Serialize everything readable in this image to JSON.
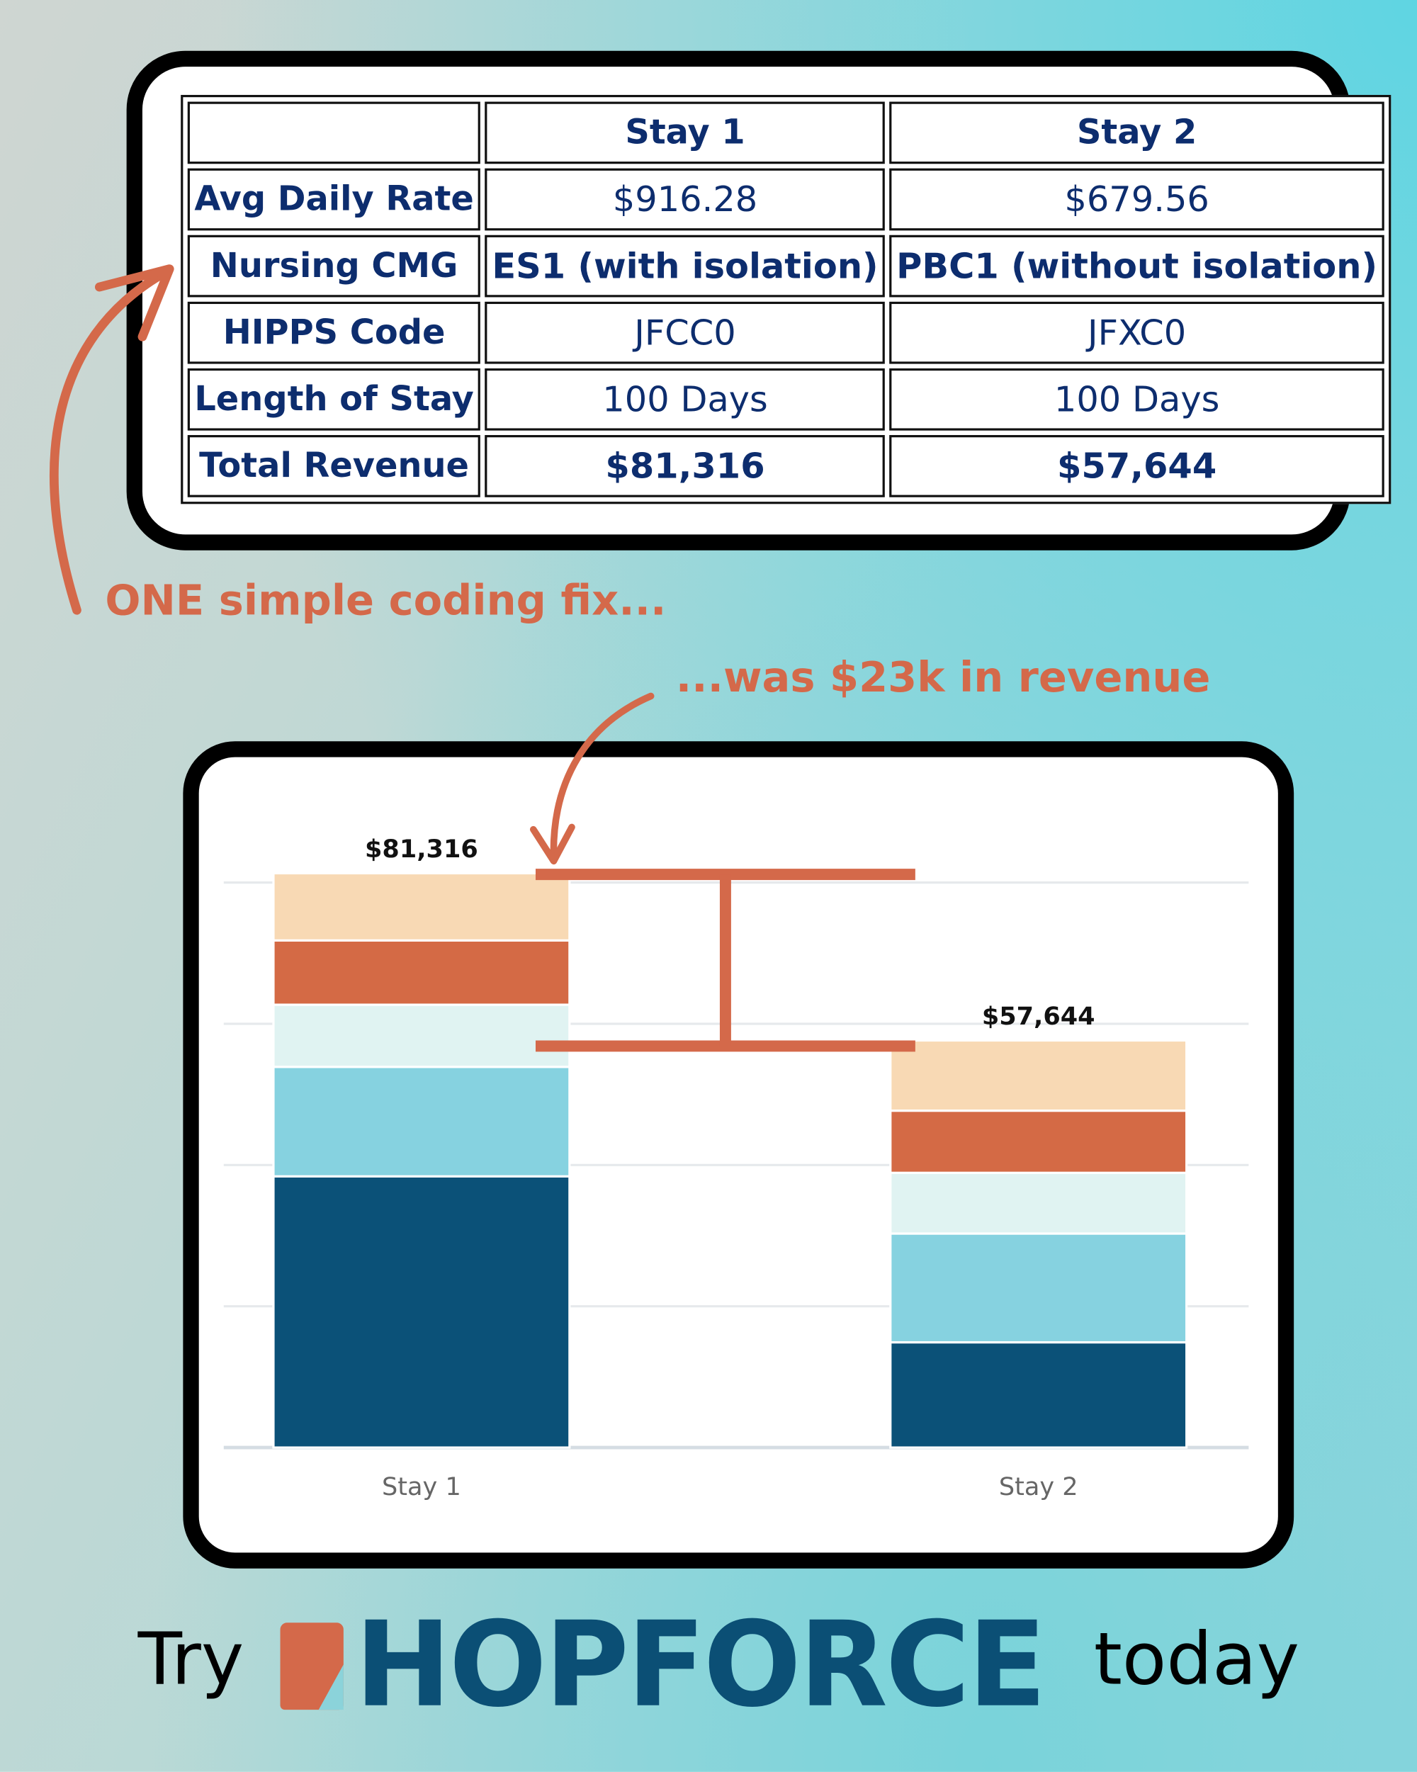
{
  "table": {
    "headers": [
      "",
      "Stay 1",
      "Stay 2"
    ],
    "rows": [
      {
        "label": "Avg Daily Rate",
        "stay1": "$916.28",
        "stay2": "$679.56",
        "bold": false
      },
      {
        "label": "Nursing CMG",
        "stay1": "ES1 (with isolation)",
        "stay2": "PBC1 (without isolation)",
        "bold": true
      },
      {
        "label": "HIPPS Code",
        "stay1": "JFCC0",
        "stay2": "JFXC0",
        "bold": false
      },
      {
        "label": "Length of Stay",
        "stay1": "100 Days",
        "stay2": "100 Days",
        "bold": false
      },
      {
        "label": "Total Revenue",
        "stay1": "$81,316",
        "stay2": "$57,644",
        "bold": true
      }
    ]
  },
  "annotations": {
    "fix": "ONE simple coding fix...",
    "revenue": "...was $23k in revenue"
  },
  "colors": {
    "accent": "#d4694a",
    "navy": "#0b4f75",
    "table_text": "#0d2d6e"
  },
  "chart_data": {
    "type": "bar",
    "stacked": true,
    "categories": [
      "Stay 1",
      "Stay 2"
    ],
    "totals": [
      "$81,316",
      "$57,644"
    ],
    "total_values": [
      81316,
      57644
    ],
    "series": [
      {
        "color": "#0b5178",
        "values": [
          38400,
          14900
        ]
      },
      {
        "color": "#86d2e0",
        "values": [
          15500,
          15400
        ]
      },
      {
        "color": "#e0f3f2",
        "values": [
          8800,
          8600
        ]
      },
      {
        "color": "#d46a45",
        "values": [
          9100,
          8800
        ]
      },
      {
        "color": "#f8d9b4",
        "values": [
          9516,
          9944
        ]
      }
    ],
    "ylim": [
      0,
      80000
    ],
    "grid": true,
    "yticks_shown": false,
    "difference_bracket": {
      "from": 57644,
      "to": 81316
    }
  },
  "footer": {
    "try": "Try",
    "brand": "HOPFORCE",
    "today": "today"
  }
}
